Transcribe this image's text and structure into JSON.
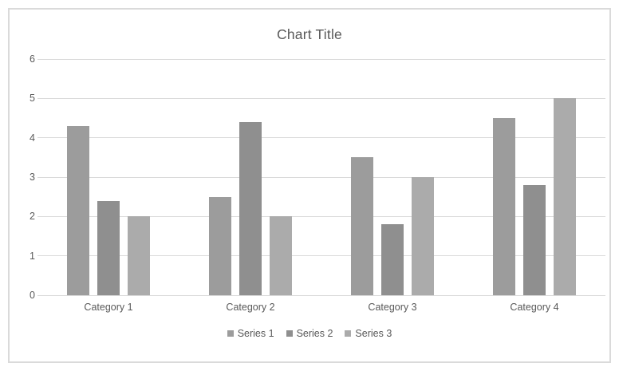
{
  "chart_data": {
    "type": "bar",
    "title": "Chart Title",
    "categories": [
      "Category 1",
      "Category 2",
      "Category 3",
      "Category 4"
    ],
    "series": [
      {
        "name": "Series 1",
        "color": "#9c9c9c",
        "values": [
          4.3,
          2.5,
          3.5,
          4.5
        ]
      },
      {
        "name": "Series 2",
        "color": "#8f8f8f",
        "values": [
          2.4,
          4.4,
          1.8,
          2.8
        ]
      },
      {
        "name": "Series 3",
        "color": "#ababab",
        "values": [
          2.0,
          2.0,
          3.0,
          5.0
        ]
      }
    ],
    "ylim": [
      0,
      6
    ],
    "yticks": [
      0,
      1,
      2,
      3,
      4,
      5,
      6
    ],
    "xlabel": "",
    "ylabel": "",
    "grid": true,
    "legend_position": "bottom"
  },
  "style": {
    "text_color": "#595959",
    "gridline_color": "#d9d9d9",
    "frame_border_color": "#dadada",
    "background": "#ffffff"
  }
}
